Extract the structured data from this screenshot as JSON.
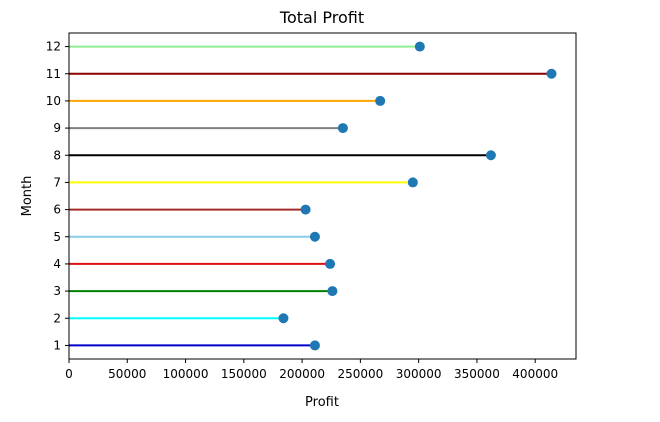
{
  "chart_data": {
    "type": "lollipop",
    "orientation": "horizontal",
    "title": "Total Profit",
    "xlabel": "Profit",
    "ylabel": "Month",
    "xlim": [
      0,
      435000
    ],
    "ylim": [
      0.5,
      12.5
    ],
    "xticks": [
      0,
      50000,
      100000,
      150000,
      200000,
      250000,
      300000,
      350000,
      400000
    ],
    "xtick_labels": [
      "0",
      "50000",
      "100000",
      "150000",
      "200000",
      "250000",
      "300000",
      "350000",
      "400000"
    ],
    "categories": [
      "1",
      "2",
      "3",
      "4",
      "5",
      "6",
      "7",
      "8",
      "9",
      "10",
      "11",
      "12"
    ],
    "values": [
      211000,
      184000,
      226000,
      224000,
      211000,
      203000,
      295000,
      362000,
      235000,
      267000,
      414000,
      301000
    ],
    "stem_colors": [
      "#0000cc",
      "#00ffff",
      "#008000",
      "#dd1111",
      "#87ceeb",
      "#a52a2a",
      "#ffff00",
      "#000000",
      "#808080",
      "#ffa500",
      "#8b0000",
      "#90ee90"
    ],
    "marker_color": "#1f77b4",
    "grid": false,
    "legend": "none"
  }
}
